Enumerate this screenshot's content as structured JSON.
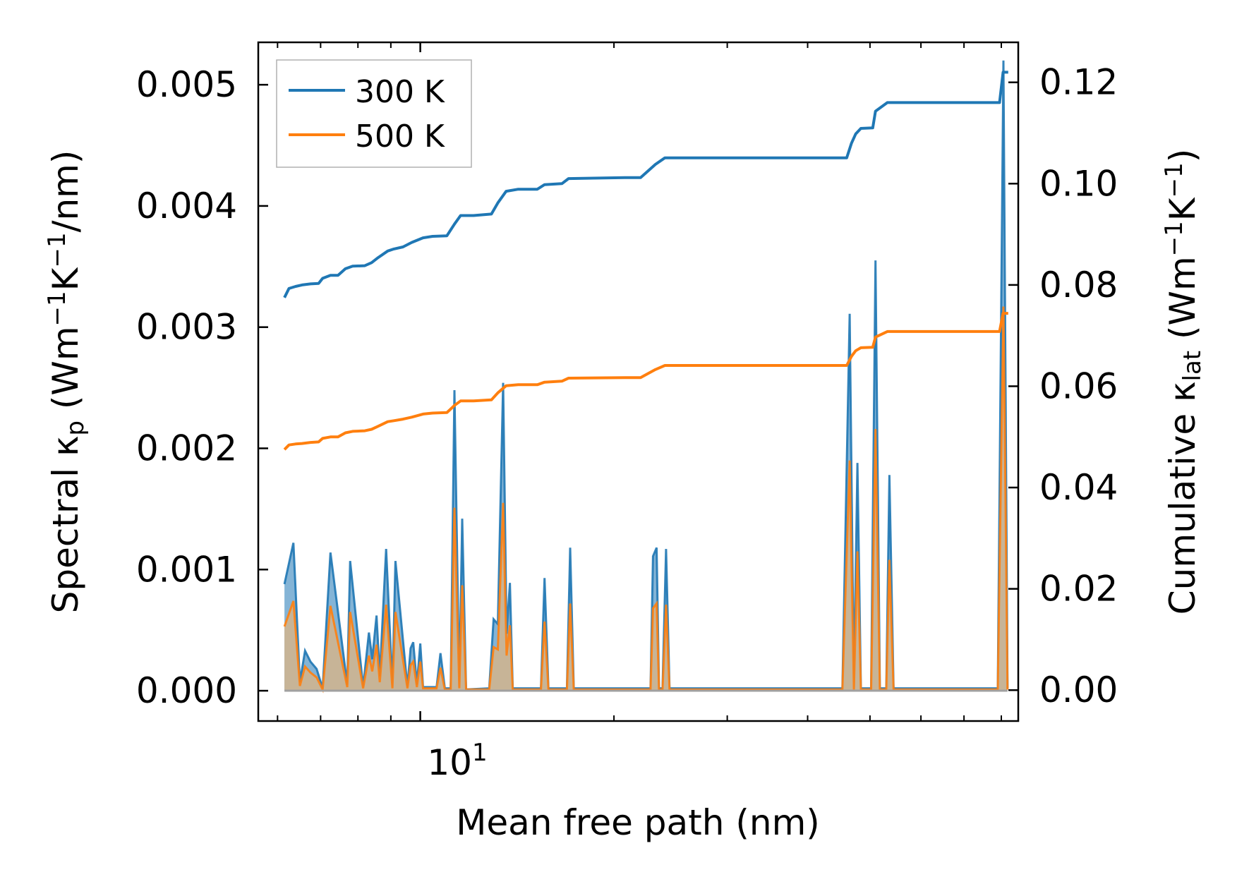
{
  "chart_data": {
    "type": "line",
    "xlabel": "Mean free path (nm)",
    "ylabel_left": "Spectral κp (Wm−1K−1/nm)",
    "ylabel_left_parts": {
      "pre": "Spectral κ",
      "sub": "p",
      "mid1": " (Wm",
      "sup1": "−1",
      "mid2": "K",
      "sup2": "−1",
      "post": "/nm)"
    },
    "ylabel_right": "Cumulative κlat (Wm−1K−1)",
    "ylabel_right_parts": {
      "pre": "Cumulative κ",
      "sub": "lat",
      "mid1": " (Wm",
      "sup1": "−1",
      "mid2": "K",
      "sup2": "−1",
      "post": ")"
    },
    "xscale": "log",
    "xlim": [
      5.6,
      85
    ],
    "ylim_left": [
      -0.00025,
      0.00535
    ],
    "ylim_right": [
      -0.0061,
      0.1279
    ],
    "x_major_tick": {
      "value": 10,
      "base": "10",
      "exp": "1"
    },
    "left_ticks": [
      "0.000",
      "0.001",
      "0.002",
      "0.003",
      "0.004",
      "0.005"
    ],
    "left_tick_values": [
      0,
      0.001,
      0.002,
      0.003,
      0.004,
      0.005
    ],
    "right_ticks": [
      "0.00",
      "0.02",
      "0.04",
      "0.06",
      "0.08",
      "0.10",
      "0.12"
    ],
    "right_tick_values": [
      0,
      0.02,
      0.04,
      0.06,
      0.08,
      0.1,
      0.12
    ],
    "legend_position": "top-left",
    "series": [
      {
        "name": "300 K",
        "color": "#1f77b4",
        "axis": "right",
        "cumulative": [
          [
            6.15,
            0.0775
          ],
          [
            6.25,
            0.0793
          ],
          [
            6.4,
            0.0797
          ],
          [
            6.55,
            0.08
          ],
          [
            6.75,
            0.0802
          ],
          [
            6.95,
            0.0803
          ],
          [
            7.05,
            0.0813
          ],
          [
            7.25,
            0.0819
          ],
          [
            7.45,
            0.0819
          ],
          [
            7.65,
            0.0832
          ],
          [
            7.85,
            0.0837
          ],
          [
            8.2,
            0.0838
          ],
          [
            8.4,
            0.0844
          ],
          [
            8.6,
            0.0854
          ],
          [
            8.9,
            0.0867
          ],
          [
            9.1,
            0.0871
          ],
          [
            9.4,
            0.0875
          ],
          [
            9.7,
            0.0884
          ],
          [
            10.1,
            0.0893
          ],
          [
            10.45,
            0.0896
          ],
          [
            11.0,
            0.0897
          ],
          [
            11.3,
            0.092
          ],
          [
            11.55,
            0.0937
          ],
          [
            12.1,
            0.0937
          ],
          [
            12.9,
            0.094
          ],
          [
            13.2,
            0.0962
          ],
          [
            13.6,
            0.0985
          ],
          [
            14.2,
            0.0989
          ],
          [
            15.2,
            0.0989
          ],
          [
            15.6,
            0.0998
          ],
          [
            16.6,
            0.1
          ],
          [
            17.0,
            0.101
          ],
          [
            20.8,
            0.1012
          ],
          [
            22.0,
            0.1012
          ],
          [
            23.2,
            0.1038
          ],
          [
            24.0,
            0.1051
          ],
          [
            33.0,
            0.1051
          ],
          [
            46.0,
            0.1051
          ],
          [
            46.8,
            0.108
          ],
          [
            47.5,
            0.1098
          ],
          [
            48.4,
            0.1109
          ],
          [
            50.5,
            0.111
          ],
          [
            51.0,
            0.1143
          ],
          [
            53.2,
            0.116
          ],
          [
            79.5,
            0.116
          ],
          [
            80.5,
            0.122
          ],
          [
            82.0,
            0.122
          ]
        ],
        "spectral": [
          [
            6.15,
            0.00088
          ],
          [
            6.35,
            0.00122
          ],
          [
            6.5,
            7e-05
          ],
          [
            6.62,
            0.00033
          ],
          [
            6.75,
            0.00024
          ],
          [
            6.9,
            0.00018
          ],
          [
            7.05,
            2e-05
          ],
          [
            7.25,
            0.00114
          ],
          [
            7.7,
            5e-05
          ],
          [
            7.78,
            0.00107
          ],
          [
            8.15,
            3e-05
          ],
          [
            8.32,
            0.00048
          ],
          [
            8.42,
            0.00026
          ],
          [
            8.55,
            0.00062
          ],
          [
            8.65,
            0.00012
          ],
          [
            8.85,
            0.00117
          ],
          [
            9.05,
            3e-05
          ],
          [
            9.15,
            0.00107
          ],
          [
            9.55,
            3e-05
          ],
          [
            9.66,
            0.00035
          ],
          [
            9.75,
            0.0004
          ],
          [
            9.88,
            5e-05
          ],
          [
            10.0,
            0.00039
          ],
          [
            10.1,
            3e-05
          ],
          [
            10.6,
            3e-05
          ],
          [
            10.75,
            0.00031
          ],
          [
            10.92,
            2e-05
          ],
          [
            11.15,
            2e-05
          ],
          [
            11.3,
            0.00248
          ],
          [
            11.5,
            3e-05
          ],
          [
            11.62,
            0.00142
          ],
          [
            11.78,
            1e-05
          ],
          [
            12.8,
            2e-05
          ],
          [
            13.0,
            0.00059
          ],
          [
            13.2,
            0.00055
          ],
          [
            13.45,
            0.00254
          ],
          [
            13.62,
            0.00047
          ],
          [
            13.78,
            0.00089
          ],
          [
            13.92,
            2e-05
          ],
          [
            15.4,
            2e-05
          ],
          [
            15.6,
            0.00093
          ],
          [
            15.82,
            2e-05
          ],
          [
            16.9,
            2e-05
          ],
          [
            17.1,
            0.00118
          ],
          [
            17.32,
            2e-05
          ],
          [
            22.8,
            2e-05
          ],
          [
            23.0,
            0.00111
          ],
          [
            23.3,
            0.00118
          ],
          [
            23.5,
            2e-05
          ],
          [
            23.8,
            2e-05
          ],
          [
            24.1,
            0.00117
          ],
          [
            24.4,
            2e-05
          ],
          [
            45.3,
            2e-05
          ],
          [
            46.5,
            0.00311
          ],
          [
            47.2,
            2e-05
          ],
          [
            47.8,
            0.00188
          ],
          [
            48.4,
            2e-05
          ],
          [
            50.2,
            2e-05
          ],
          [
            51.0,
            0.00355
          ],
          [
            51.8,
            2e-05
          ],
          [
            53.0,
            2e-05
          ],
          [
            53.6,
            0.00178
          ],
          [
            54.4,
            2e-05
          ],
          [
            79.0,
            2e-05
          ],
          [
            80.6,
            0.0052
          ],
          [
            81.8,
            2e-05
          ]
        ]
      },
      {
        "name": "500 K",
        "color": "#ff7f0e",
        "axis": "right",
        "cumulative": [
          [
            6.15,
            0.0475
          ],
          [
            6.25,
            0.0484
          ],
          [
            6.4,
            0.0486
          ],
          [
            6.55,
            0.0487
          ],
          [
            6.75,
            0.0489
          ],
          [
            6.95,
            0.049
          ],
          [
            7.05,
            0.0497
          ],
          [
            7.25,
            0.05
          ],
          [
            7.45,
            0.05
          ],
          [
            7.65,
            0.0508
          ],
          [
            7.85,
            0.0511
          ],
          [
            8.2,
            0.0512
          ],
          [
            8.4,
            0.0515
          ],
          [
            8.6,
            0.0521
          ],
          [
            8.9,
            0.053
          ],
          [
            9.1,
            0.0532
          ],
          [
            9.4,
            0.0535
          ],
          [
            9.7,
            0.0539
          ],
          [
            10.1,
            0.0545
          ],
          [
            10.45,
            0.0547
          ],
          [
            11.0,
            0.0548
          ],
          [
            11.3,
            0.0562
          ],
          [
            11.55,
            0.0571
          ],
          [
            12.1,
            0.0571
          ],
          [
            12.9,
            0.0573
          ],
          [
            13.2,
            0.0587
          ],
          [
            13.6,
            0.0601
          ],
          [
            14.2,
            0.0603
          ],
          [
            15.2,
            0.0603
          ],
          [
            15.6,
            0.0608
          ],
          [
            16.6,
            0.061
          ],
          [
            17.0,
            0.0616
          ],
          [
            20.8,
            0.0617
          ],
          [
            22.0,
            0.0617
          ],
          [
            23.2,
            0.0633
          ],
          [
            24.0,
            0.0641
          ],
          [
            33.0,
            0.0641
          ],
          [
            46.0,
            0.0641
          ],
          [
            46.8,
            0.0659
          ],
          [
            47.5,
            0.067
          ],
          [
            48.4,
            0.0676
          ],
          [
            50.5,
            0.0677
          ],
          [
            51.0,
            0.0697
          ],
          [
            53.2,
            0.0708
          ],
          [
            79.5,
            0.0708
          ],
          [
            80.5,
            0.0744
          ],
          [
            82.0,
            0.0744
          ]
        ],
        "spectral": [
          [
            6.15,
            0.00053
          ],
          [
            6.35,
            0.00074
          ],
          [
            6.5,
            4e-05
          ],
          [
            6.62,
            0.0002
          ],
          [
            6.75,
            0.00015
          ],
          [
            6.9,
            0.00011
          ],
          [
            7.05,
            1e-05
          ],
          [
            7.25,
            0.0007
          ],
          [
            7.7,
            3e-05
          ],
          [
            7.78,
            0.00065
          ],
          [
            8.15,
            2e-05
          ],
          [
            8.32,
            0.00029
          ],
          [
            8.42,
            0.00016
          ],
          [
            8.55,
            0.00038
          ],
          [
            8.65,
            7e-05
          ],
          [
            8.85,
            0.00071
          ],
          [
            9.05,
            2e-05
          ],
          [
            9.15,
            0.00065
          ],
          [
            9.55,
            2e-05
          ],
          [
            9.66,
            0.00021
          ],
          [
            9.75,
            0.00024
          ],
          [
            9.88,
            3e-05
          ],
          [
            10.0,
            0.00024
          ],
          [
            10.1,
            2e-05
          ],
          [
            10.6,
            2e-05
          ],
          [
            10.75,
            0.00019
          ],
          [
            10.92,
            1e-05
          ],
          [
            11.15,
            1e-05
          ],
          [
            11.3,
            0.00151
          ],
          [
            11.5,
            2e-05
          ],
          [
            11.62,
            0.00087
          ],
          [
            11.78,
            1e-05
          ],
          [
            12.8,
            1e-05
          ],
          [
            13.0,
            0.00036
          ],
          [
            13.2,
            0.00034
          ],
          [
            13.45,
            0.00155
          ],
          [
            13.62,
            0.00029
          ],
          [
            13.78,
            0.00054
          ],
          [
            13.92,
            1e-05
          ],
          [
            15.4,
            1e-05
          ],
          [
            15.6,
            0.00057
          ],
          [
            15.82,
            1e-05
          ],
          [
            16.9,
            1e-05
          ],
          [
            17.1,
            0.00072
          ],
          [
            17.32,
            1e-05
          ],
          [
            22.8,
            1e-05
          ],
          [
            23.0,
            0.00068
          ],
          [
            23.3,
            0.00072
          ],
          [
            23.5,
            1e-05
          ],
          [
            23.8,
            1e-05
          ],
          [
            24.1,
            0.00071
          ],
          [
            24.4,
            1e-05
          ],
          [
            45.3,
            1e-05
          ],
          [
            46.5,
            0.0019
          ],
          [
            47.2,
            1e-05
          ],
          [
            47.8,
            0.00115
          ],
          [
            48.4,
            1e-05
          ],
          [
            50.2,
            1e-05
          ],
          [
            51.0,
            0.00216
          ],
          [
            51.8,
            1e-05
          ],
          [
            53.0,
            1e-05
          ],
          [
            53.6,
            0.00108
          ],
          [
            54.4,
            1e-05
          ],
          [
            79.0,
            1e-05
          ],
          [
            80.6,
            0.00317
          ],
          [
            81.8,
            1e-05
          ]
        ]
      }
    ]
  }
}
